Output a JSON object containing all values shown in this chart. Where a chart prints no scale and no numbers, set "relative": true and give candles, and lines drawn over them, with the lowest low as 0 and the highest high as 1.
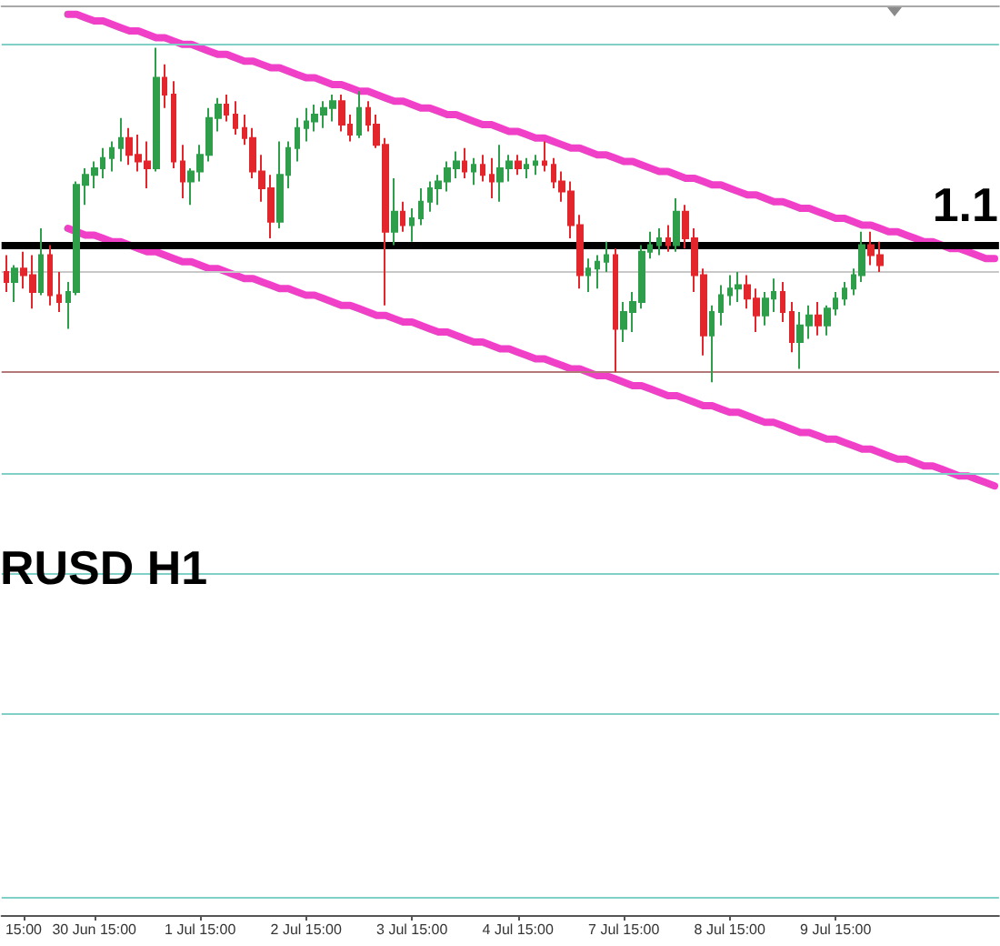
{
  "chart_data": {
    "type": "candlestick",
    "title": "RUSD H1",
    "relative": true,
    "marker": "none",
    "line_style": "solid",
    "annotations": [
      {
        "text": "1.1",
        "y": 0.41
      }
    ],
    "categories": [
      null,
      null,
      "15:00",
      null,
      null,
      null,
      null,
      null,
      null,
      null,
      "30 Jun 15:00",
      null,
      null,
      null,
      null,
      null,
      null,
      null,
      null,
      null,
      null,
      null,
      "1 Jul 15:00",
      null,
      null,
      null,
      null,
      null,
      null,
      null,
      null,
      null,
      null,
      null,
      "2 Jul 15:00",
      null,
      null,
      null,
      null,
      null,
      null,
      null,
      null,
      null,
      null,
      null,
      "3 Jul 15:00",
      null,
      null,
      null,
      null,
      null,
      null,
      null,
      null,
      null,
      null,
      null,
      "4 Jul 15:00",
      null,
      null,
      null,
      null,
      null,
      null,
      null,
      null,
      null,
      null,
      null,
      "7 Jul 15:00",
      null,
      null,
      null,
      null,
      null,
      null,
      null,
      null,
      null,
      null,
      null,
      "8 Jul 15:00",
      null,
      null,
      null,
      null,
      null,
      null,
      null,
      null,
      null,
      null,
      null,
      "9 Jul 15:00",
      null,
      null,
      null,
      null,
      null,
      null,
      null,
      null,
      null,
      null,
      null,
      null,
      null,
      null,
      null,
      null,
      null,
      null
    ],
    "ohlc": [
      [
        0.33,
        0.38,
        0.27,
        0.3
      ],
      [
        0.3,
        0.35,
        0.24,
        0.34
      ],
      [
        0.34,
        0.39,
        0.28,
        0.32
      ],
      [
        0.32,
        0.38,
        0.22,
        0.27
      ],
      [
        0.27,
        0.46,
        0.26,
        0.38
      ],
      [
        0.38,
        0.41,
        0.23,
        0.26
      ],
      [
        0.26,
        0.33,
        0.21,
        0.24
      ],
      [
        0.24,
        0.3,
        0.16,
        0.27
      ],
      [
        0.27,
        0.6,
        0.26,
        0.59
      ],
      [
        0.59,
        0.64,
        0.53,
        0.62
      ],
      [
        0.62,
        0.66,
        0.58,
        0.64
      ],
      [
        0.64,
        0.7,
        0.61,
        0.67
      ],
      [
        0.67,
        0.72,
        0.63,
        0.7
      ],
      [
        0.7,
        0.79,
        0.66,
        0.73
      ],
      [
        0.73,
        0.76,
        0.65,
        0.68
      ],
      [
        0.68,
        0.74,
        0.63,
        0.66
      ],
      [
        0.66,
        0.72,
        0.58,
        0.64
      ],
      [
        0.64,
        1.0,
        0.63,
        0.91
      ],
      [
        0.91,
        0.95,
        0.82,
        0.86
      ],
      [
        0.86,
        0.9,
        0.64,
        0.66
      ],
      [
        0.66,
        0.71,
        0.55,
        0.6
      ],
      [
        0.6,
        0.64,
        0.53,
        0.63
      ],
      [
        0.63,
        0.71,
        0.6,
        0.68
      ],
      [
        0.68,
        0.82,
        0.66,
        0.79
      ],
      [
        0.79,
        0.85,
        0.75,
        0.83
      ],
      [
        0.83,
        0.86,
        0.78,
        0.8
      ],
      [
        0.8,
        0.84,
        0.74,
        0.76
      ],
      [
        0.76,
        0.8,
        0.71,
        0.73
      ],
      [
        0.73,
        0.76,
        0.61,
        0.63
      ],
      [
        0.63,
        0.68,
        0.54,
        0.58
      ],
      [
        0.58,
        0.62,
        0.43,
        0.48
      ],
      [
        0.48,
        0.72,
        0.46,
        0.62
      ],
      [
        0.62,
        0.72,
        0.58,
        0.7
      ],
      [
        0.7,
        0.79,
        0.66,
        0.76
      ],
      [
        0.76,
        0.82,
        0.72,
        0.78
      ],
      [
        0.78,
        0.83,
        0.75,
        0.8
      ],
      [
        0.8,
        0.84,
        0.76,
        0.82
      ],
      [
        0.82,
        0.86,
        0.78,
        0.84
      ],
      [
        0.84,
        0.86,
        0.75,
        0.77
      ],
      [
        0.77,
        0.8,
        0.72,
        0.74
      ],
      [
        0.74,
        0.87,
        0.73,
        0.82
      ],
      [
        0.82,
        0.84,
        0.75,
        0.77
      ],
      [
        0.77,
        0.8,
        0.7,
        0.71
      ],
      [
        0.71,
        0.73,
        0.23,
        0.45
      ],
      [
        0.45,
        0.61,
        0.41,
        0.51
      ],
      [
        0.51,
        0.54,
        0.45,
        0.47
      ],
      [
        0.47,
        0.52,
        0.42,
        0.49
      ],
      [
        0.49,
        0.58,
        0.47,
        0.54
      ],
      [
        0.54,
        0.6,
        0.51,
        0.58
      ],
      [
        0.58,
        0.62,
        0.53,
        0.6
      ],
      [
        0.6,
        0.66,
        0.57,
        0.64
      ],
      [
        0.64,
        0.69,
        0.61,
        0.66
      ],
      [
        0.66,
        0.7,
        0.61,
        0.63
      ],
      [
        0.63,
        0.67,
        0.59,
        0.65
      ],
      [
        0.65,
        0.68,
        0.6,
        0.62
      ],
      [
        0.62,
        0.67,
        0.55,
        0.6
      ],
      [
        0.6,
        0.71,
        0.54,
        0.64
      ],
      [
        0.64,
        0.68,
        0.6,
        0.66
      ],
      [
        0.66,
        0.68,
        0.62,
        0.64
      ],
      [
        0.64,
        0.67,
        0.61,
        0.65
      ],
      [
        0.65,
        0.68,
        0.62,
        0.66
      ],
      [
        0.66,
        0.72,
        0.63,
        0.65
      ],
      [
        0.65,
        0.67,
        0.58,
        0.6
      ],
      [
        0.6,
        0.63,
        0.54,
        0.57
      ],
      [
        0.57,
        0.6,
        0.43,
        0.47
      ],
      [
        0.47,
        0.5,
        0.28,
        0.32
      ],
      [
        0.32,
        0.37,
        0.27,
        0.34
      ],
      [
        0.34,
        0.38,
        0.28,
        0.36
      ],
      [
        0.36,
        0.42,
        0.33,
        0.38
      ],
      [
        0.38,
        0.4,
        0.03,
        0.16
      ],
      [
        0.16,
        0.24,
        0.12,
        0.21
      ],
      [
        0.21,
        0.27,
        0.15,
        0.24
      ],
      [
        0.24,
        0.41,
        0.22,
        0.39
      ],
      [
        0.39,
        0.45,
        0.37,
        0.41
      ],
      [
        0.41,
        0.46,
        0.38,
        0.43
      ],
      [
        0.43,
        0.47,
        0.39,
        0.41
      ],
      [
        0.41,
        0.55,
        0.39,
        0.51
      ],
      [
        0.51,
        0.53,
        0.4,
        0.43
      ],
      [
        0.43,
        0.46,
        0.27,
        0.32
      ],
      [
        0.32,
        0.34,
        0.08,
        0.14
      ],
      [
        0.14,
        0.23,
        0.0,
        0.21
      ],
      [
        0.21,
        0.29,
        0.17,
        0.26
      ],
      [
        0.26,
        0.32,
        0.23,
        0.28
      ],
      [
        0.28,
        0.33,
        0.24,
        0.29
      ],
      [
        0.29,
        0.32,
        0.22,
        0.25
      ],
      [
        0.25,
        0.28,
        0.15,
        0.2
      ],
      [
        0.2,
        0.27,
        0.17,
        0.25
      ],
      [
        0.25,
        0.31,
        0.21,
        0.27
      ],
      [
        0.27,
        0.3,
        0.18,
        0.21
      ],
      [
        0.21,
        0.24,
        0.09,
        0.12
      ],
      [
        0.12,
        0.21,
        0.04,
        0.17
      ],
      [
        0.17,
        0.23,
        0.13,
        0.2
      ],
      [
        0.2,
        0.24,
        0.14,
        0.17
      ],
      [
        0.17,
        0.23,
        0.14,
        0.22
      ],
      [
        0.22,
        0.27,
        0.2,
        0.25
      ],
      [
        0.25,
        0.3,
        0.23,
        0.28
      ],
      [
        0.28,
        0.34,
        0.26,
        0.32
      ],
      [
        0.32,
        0.45,
        0.3,
        0.41
      ],
      [
        0.41,
        0.45,
        0.35,
        0.38
      ],
      [
        0.38,
        0.42,
        0.33,
        0.35
      ],
      null,
      null,
      null,
      null,
      null,
      null,
      null,
      null,
      null,
      null,
      null,
      null,
      null
    ],
    "colors": [
      "#e3262c",
      "#2e9e4a",
      "#e3262c",
      "#e3262c",
      "#2e9e4a",
      "#e3262c",
      "#e3262c",
      "#2e9e4a",
      "#2e9e4a",
      "#2e9e4a",
      "#2e9e4a",
      "#2e9e4a",
      "#2e9e4a",
      "#2e9e4a",
      "#e3262c",
      "#e3262c",
      "#e3262c",
      "#2e9e4a",
      "#e3262c",
      "#e3262c",
      "#e3262c",
      "#2e9e4a",
      "#2e9e4a",
      "#2e9e4a",
      "#2e9e4a",
      "#e3262c",
      "#e3262c",
      "#e3262c",
      "#e3262c",
      "#e3262c",
      "#e3262c",
      "#2e9e4a",
      "#2e9e4a",
      "#2e9e4a",
      "#2e9e4a",
      "#2e9e4a",
      "#2e9e4a",
      "#2e9e4a",
      "#e3262c",
      "#e3262c",
      "#2e9e4a",
      "#e3262c",
      "#e3262c",
      "#e3262c",
      "#2e9e4a",
      "#e3262c",
      "#2e9e4a",
      "#2e9e4a",
      "#2e9e4a",
      "#2e9e4a",
      "#2e9e4a",
      "#2e9e4a",
      "#e3262c",
      "#2e9e4a",
      "#e3262c",
      "#e3262c",
      "#2e9e4a",
      "#2e9e4a",
      "#e3262c",
      "#2e9e4a",
      "#2e9e4a",
      "#e3262c",
      "#e3262c",
      "#e3262c",
      "#e3262c",
      "#e3262c",
      "#2e9e4a",
      "#2e9e4a",
      "#2e9e4a",
      "#e3262c",
      "#2e9e4a",
      "#2e9e4a",
      "#2e9e4a",
      "#2e9e4a",
      "#2e9e4a",
      "#e3262c",
      "#2e9e4a",
      "#e3262c",
      "#e3262c",
      "#e3262c",
      "#2e9e4a",
      "#2e9e4a",
      "#2e9e4a",
      "#2e9e4a",
      "#e3262c",
      "#e3262c",
      "#2e9e4a",
      "#2e9e4a",
      "#e3262c",
      "#e3262c",
      "#2e9e4a",
      "#2e9e4a",
      "#e3262c",
      "#2e9e4a",
      "#2e9e4a",
      "#2e9e4a",
      "#2e9e4a",
      "#2e9e4a",
      "#e3262c",
      "#e3262c",
      null,
      null,
      null,
      null,
      null,
      null,
      null,
      null,
      null,
      null,
      null,
      null,
      null
    ],
    "series": [
      {
        "type": "line",
        "color": "#f040c8",
        "values": [
          null,
          null,
          null,
          null,
          null,
          null,
          null,
          1.1,
          1.1,
          1.09,
          1.08,
          1.08,
          1.07,
          1.06,
          1.05,
          1.05,
          1.04,
          1.03,
          1.03,
          1.02,
          1.01,
          1.01,
          1.0,
          0.99,
          0.98,
          0.98,
          0.97,
          0.96,
          0.96,
          0.95,
          0.94,
          0.94,
          0.93,
          0.92,
          0.91,
          0.91,
          0.9,
          0.89,
          0.89,
          0.88,
          0.87,
          0.87,
          0.86,
          0.85,
          0.84,
          0.84,
          0.83,
          0.82,
          0.82,
          0.81,
          0.8,
          0.8,
          0.79,
          0.78,
          0.77,
          0.77,
          0.76,
          0.75,
          0.75,
          0.74,
          0.73,
          0.73,
          0.72,
          0.71,
          0.7,
          0.7,
          0.69,
          0.68,
          0.68,
          0.67,
          0.66,
          0.66,
          0.65,
          0.64,
          0.63,
          0.63,
          0.62,
          0.61,
          0.61,
          0.6,
          0.59,
          0.59,
          0.58,
          0.57,
          0.56,
          0.56,
          0.55,
          0.54,
          0.54,
          0.53,
          0.52,
          0.52,
          0.51,
          0.5,
          0.49,
          0.49,
          0.48,
          0.47,
          0.47,
          0.46,
          0.45,
          0.45,
          0.44,
          0.43,
          0.42,
          0.42,
          0.41,
          0.4,
          0.4,
          0.39,
          0.38,
          0.37,
          0.37
        ]
      },
      {
        "type": "line",
        "color": "#f040c8",
        "values": [
          null,
          null,
          null,
          null,
          null,
          null,
          null,
          0.46,
          0.45,
          0.44,
          0.44,
          0.43,
          0.42,
          0.42,
          0.41,
          0.4,
          0.39,
          0.39,
          0.38,
          0.37,
          0.36,
          0.36,
          0.35,
          0.34,
          0.34,
          0.33,
          0.32,
          0.31,
          0.31,
          0.3,
          0.29,
          0.28,
          0.28,
          0.27,
          0.26,
          0.26,
          0.25,
          0.24,
          0.23,
          0.23,
          0.22,
          0.21,
          0.2,
          0.2,
          0.19,
          0.18,
          0.18,
          0.17,
          0.16,
          0.15,
          0.15,
          0.14,
          0.13,
          0.12,
          0.12,
          0.11,
          0.1,
          0.1,
          0.09,
          0.08,
          0.07,
          0.07,
          0.06,
          0.05,
          0.04,
          0.04,
          0.03,
          0.02,
          0.02,
          0.01,
          0.0,
          -0.01,
          -0.01,
          -0.02,
          -0.03,
          -0.04,
          -0.04,
          -0.05,
          -0.06,
          -0.07,
          -0.07,
          -0.08,
          -0.09,
          -0.09,
          -0.1,
          -0.11,
          -0.12,
          -0.12,
          -0.13,
          -0.14,
          -0.15,
          -0.15,
          -0.16,
          -0.17,
          -0.17,
          -0.18,
          -0.19,
          -0.2,
          -0.2,
          -0.21,
          -0.22,
          -0.23,
          -0.23,
          -0.24,
          -0.25,
          -0.25,
          -0.26,
          -0.27,
          -0.28,
          -0.28,
          -0.29,
          -0.3,
          -0.31
        ]
      }
    ],
    "ref_lines": [
      {
        "axis": "y",
        "value": 1.01,
        "color": "#80d0c8"
      },
      {
        "axis": "y",
        "value": 0.41,
        "color": "#000000"
      },
      {
        "axis": "y",
        "value": 0.33,
        "color": "#c8c8c8"
      },
      {
        "axis": "y",
        "value": 0.03,
        "color": "#b47878"
      },
      {
        "axis": "y",
        "value": -0.27,
        "color": "#80d0c8"
      },
      {
        "axis": "y",
        "value": -0.57,
        "color": "#80d0c8"
      },
      {
        "axis": "y",
        "value": -0.99,
        "color": "#80d0c8"
      },
      {
        "axis": "y",
        "value": -1.54,
        "color": "#80d0c8"
      }
    ]
  }
}
